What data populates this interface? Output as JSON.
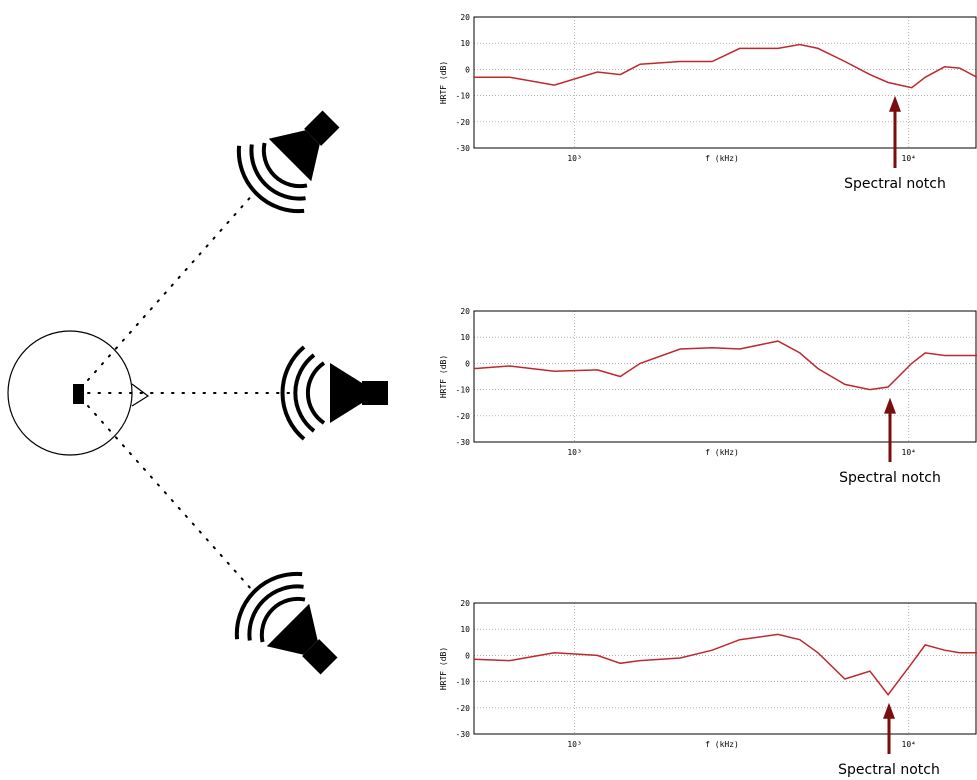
{
  "chart_data": [
    {
      "type": "line",
      "xlabel": "f (kHz)",
      "ylabel": "HRTF (dB)",
      "annotation": "Spectral notch",
      "x": [
        500,
        640,
        870,
        1170,
        1370,
        1570,
        2070,
        2580,
        3120,
        4060,
        4720,
        5350,
        6440,
        7650,
        8670,
        10200,
        11200,
        12800,
        14200,
        16000
      ],
      "series": [
        {
          "color": "#c0282d",
          "values": [
            -3,
            -3,
            -6,
            -1,
            -2,
            2,
            3,
            3,
            8,
            8,
            9.5,
            8,
            3,
            -2,
            -5,
            -7,
            -3,
            1,
            0.5,
            -3
          ]
        }
      ],
      "xscale": "log",
      "xlim": [
        500,
        16000
      ],
      "ylim": [
        -30,
        20
      ],
      "xticks": [
        {
          "value": 1000,
          "label": "10³"
        },
        {
          "value": 10000,
          "label": "10⁴"
        }
      ],
      "yticks": [
        -30,
        -20,
        -10,
        0,
        10,
        20
      ],
      "grid": true,
      "annotation_color": "#7a0e0e"
    },
    {
      "type": "line",
      "xlabel": "f (kHz)",
      "ylabel": "HRTF (dB)",
      "annotation": "Spectral notch",
      "x": [
        500,
        640,
        870,
        1170,
        1370,
        1570,
        2070,
        2580,
        3120,
        4060,
        4720,
        5350,
        6440,
        7650,
        8670,
        10200,
        11200,
        12800,
        14200,
        16000
      ],
      "series": [
        {
          "color": "#c0282d",
          "values": [
            -2,
            -1,
            -3,
            -2.5,
            -5,
            0,
            5.5,
            6,
            5.5,
            8.5,
            4,
            -2,
            -8,
            -10,
            -9,
            0,
            4,
            3,
            3,
            3
          ]
        }
      ],
      "xscale": "log",
      "xlim": [
        500,
        16000
      ],
      "ylim": [
        -30,
        20
      ],
      "xticks": [
        {
          "value": 1000,
          "label": "10³"
        },
        {
          "value": 10000,
          "label": "10⁴"
        }
      ],
      "yticks": [
        -30,
        -20,
        -10,
        0,
        10,
        20
      ],
      "grid": true,
      "annotation_color": "#7a0e0e"
    },
    {
      "type": "line",
      "xlabel": "f (kHz)",
      "ylabel": "HRTF (dB)",
      "annotation": "Spectral notch",
      "x": [
        500,
        640,
        870,
        1170,
        1370,
        1570,
        2070,
        2580,
        3120,
        4060,
        4720,
        5350,
        6440,
        7650,
        8670,
        10200,
        11200,
        12800,
        14200,
        16000
      ],
      "series": [
        {
          "color": "#c0282d",
          "values": [
            -1.5,
            -2,
            1,
            0,
            -3,
            -2,
            -1,
            2,
            6,
            8,
            6,
            1,
            -9,
            -6,
            -15,
            -3,
            4,
            2,
            1,
            1
          ]
        }
      ],
      "xscale": "log",
      "xlim": [
        500,
        16000
      ],
      "ylim": [
        -30,
        20
      ],
      "xticks": [
        {
          "value": 1000,
          "label": "10³"
        },
        {
          "value": 10000,
          "label": "10⁴"
        }
      ],
      "yticks": [
        -30,
        -20,
        -10,
        0,
        10,
        20
      ],
      "grid": true,
      "annotation_color": "#7a0e0e"
    }
  ]
}
